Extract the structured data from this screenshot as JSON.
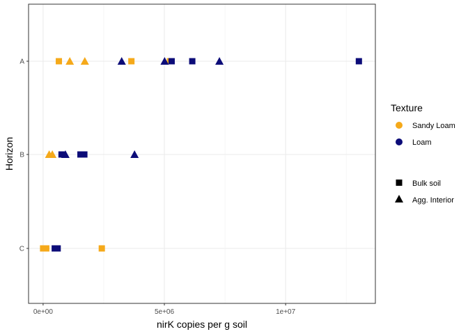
{
  "chart_data": {
    "type": "scatter",
    "xlabel": "nirK copies per g soil",
    "ylabel": "Horizon",
    "xlim": [
      -600000,
      13700000
    ],
    "x_ticks": [
      {
        "value": 0,
        "label": "0e+00"
      },
      {
        "value": 5000000,
        "label": "5e+06"
      },
      {
        "value": 10000000,
        "label": "1e+07"
      }
    ],
    "y_categories": [
      "C",
      "B",
      "A"
    ],
    "grid": true,
    "legend_position": "right",
    "color_legend": {
      "title": "Texture",
      "entries": [
        {
          "label": "Sandy Loam",
          "color": "#F5A91A"
        },
        {
          "label": "Loam",
          "color": "#0C0C78"
        }
      ]
    },
    "shape_legend": {
      "entries": [
        {
          "label": "Bulk soil",
          "shape": "square"
        },
        {
          "label": "Agg. Interior",
          "shape": "triangle"
        }
      ]
    },
    "points": [
      {
        "x": 650000,
        "y": "A",
        "texture": "Sandy Loam",
        "type": "Bulk soil"
      },
      {
        "x": 1100000,
        "y": "A",
        "texture": "Sandy Loam",
        "type": "Agg. Interior"
      },
      {
        "x": 1720000,
        "y": "A",
        "texture": "Sandy Loam",
        "type": "Agg. Interior"
      },
      {
        "x": 3640000,
        "y": "A",
        "texture": "Sandy Loam",
        "type": "Bulk soil"
      },
      {
        "x": 5230000,
        "y": "A",
        "texture": "Sandy Loam",
        "type": "Bulk soil"
      },
      {
        "x": 3240000,
        "y": "A",
        "texture": "Loam",
        "type": "Agg. Interior"
      },
      {
        "x": 5010000,
        "y": "A",
        "texture": "Loam",
        "type": "Agg. Interior"
      },
      {
        "x": 5300000,
        "y": "A",
        "texture": "Loam",
        "type": "Bulk soil"
      },
      {
        "x": 6150000,
        "y": "A",
        "texture": "Loam",
        "type": "Bulk soil"
      },
      {
        "x": 7270000,
        "y": "A",
        "texture": "Loam",
        "type": "Agg. Interior"
      },
      {
        "x": 13020000,
        "y": "A",
        "texture": "Loam",
        "type": "Bulk soil"
      },
      {
        "x": 250000,
        "y": "B",
        "texture": "Sandy Loam",
        "type": "Agg. Interior"
      },
      {
        "x": 380000,
        "y": "B",
        "texture": "Sandy Loam",
        "type": "Agg. Interior"
      },
      {
        "x": 760000,
        "y": "B",
        "texture": "Loam",
        "type": "Bulk soil"
      },
      {
        "x": 920000,
        "y": "B",
        "texture": "Loam",
        "type": "Agg. Interior"
      },
      {
        "x": 1540000,
        "y": "B",
        "texture": "Loam",
        "type": "Bulk soil"
      },
      {
        "x": 1700000,
        "y": "B",
        "texture": "Loam",
        "type": "Bulk soil"
      },
      {
        "x": 3770000,
        "y": "B",
        "texture": "Loam",
        "type": "Agg. Interior"
      },
      {
        "x": 0,
        "y": "C",
        "texture": "Sandy Loam",
        "type": "Bulk soil"
      },
      {
        "x": 130000,
        "y": "C",
        "texture": "Sandy Loam",
        "type": "Bulk soil"
      },
      {
        "x": 2420000,
        "y": "C",
        "texture": "Sandy Loam",
        "type": "Bulk soil"
      },
      {
        "x": 480000,
        "y": "C",
        "texture": "Loam",
        "type": "Bulk soil"
      },
      {
        "x": 600000,
        "y": "C",
        "texture": "Loam",
        "type": "Bulk soil"
      }
    ]
  }
}
